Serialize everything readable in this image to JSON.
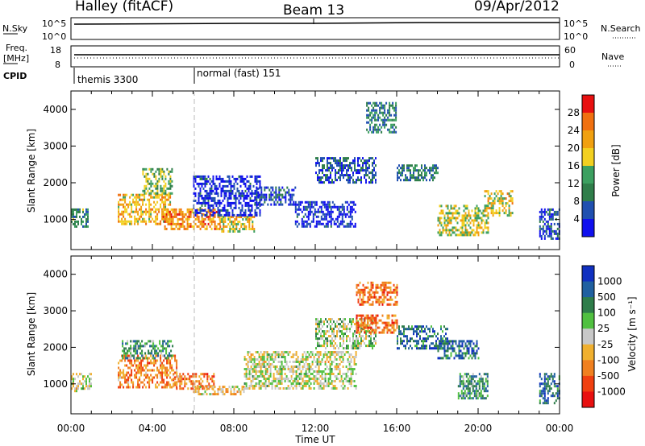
{
  "header": {
    "station": "Halley (fitACF)",
    "beam": "Beam 13",
    "date": "09/Apr/2012"
  },
  "top_panels": {
    "nsky_label": "N.Sky",
    "nsky_ticks": [
      "10^5",
      "10^0"
    ],
    "nsearch_label": "N.Search",
    "nsearch_ticks": [
      "10^5",
      "10^0"
    ],
    "freq_label": "Freq.",
    "freq_unit": "[MHz]",
    "freq_ticks": [
      "18",
      "8"
    ],
    "nave_label": "Nave",
    "nave_ticks": [
      "60",
      "0"
    ],
    "cpid_label": "CPID",
    "cpid_modes": [
      {
        "name": "themis 3300",
        "start_hour": 0
      },
      {
        "name": "normal (fast) 151",
        "start_hour": 6
      }
    ]
  },
  "chart_data": [
    {
      "type": "heatmap",
      "name": "power",
      "ylabel": "Slant Range [km]",
      "xlabel": "Time UT",
      "x_ticks": [
        "00:00",
        "04:00",
        "08:00",
        "12:00",
        "16:00",
        "20:00",
        "00:00"
      ],
      "xlim_hours": [
        0,
        24
      ],
      "y_ticks": [
        1000,
        2000,
        3000,
        4000
      ],
      "ylim": [
        180,
        4500
      ],
      "colorbar": {
        "label": "Power [dB]",
        "ticks": [
          4,
          8,
          12,
          16,
          20,
          24,
          28
        ],
        "range": [
          0,
          32
        ],
        "colors": [
          "#1010ee",
          "#2050b0",
          "#2f7e4a",
          "#3ca060",
          "#f2d020",
          "#f0a010",
          "#f07010",
          "#e81010"
        ]
      },
      "regions": [
        {
          "t": [
            0.0,
            0.8
          ],
          "r": [
            800,
            1300
          ],
          "level": 0.35
        },
        {
          "t": [
            2.3,
            4.9
          ],
          "r": [
            900,
            1700
          ],
          "level": 0.65
        },
        {
          "t": [
            3.5,
            5.0
          ],
          "r": [
            1700,
            2400
          ],
          "level": 0.45
        },
        {
          "t": [
            4.5,
            7.3
          ],
          "r": [
            750,
            1300
          ],
          "level": 0.75
        },
        {
          "t": [
            7.3,
            9.0
          ],
          "r": [
            650,
            1100
          ],
          "level": 0.6
        },
        {
          "t": [
            6.0,
            9.3
          ],
          "r": [
            1100,
            2200
          ],
          "level": 0.1
        },
        {
          "t": [
            9.0,
            11.0
          ],
          "r": [
            1400,
            1900
          ],
          "level": 0.15
        },
        {
          "t": [
            11.0,
            14.0
          ],
          "r": [
            800,
            1500
          ],
          "level": 0.1
        },
        {
          "t": [
            12.0,
            15.0
          ],
          "r": [
            2000,
            2700
          ],
          "level": 0.2
        },
        {
          "t": [
            14.5,
            16.0
          ],
          "r": [
            3400,
            4200
          ],
          "level": 0.3
        },
        {
          "t": [
            16.0,
            18.0
          ],
          "r": [
            2100,
            2500
          ],
          "level": 0.3
        },
        {
          "t": [
            18.0,
            20.5
          ],
          "r": [
            600,
            1400
          ],
          "level": 0.55
        },
        {
          "t": [
            20.3,
            21.7
          ],
          "r": [
            1100,
            1800
          ],
          "level": 0.6
        },
        {
          "t": [
            23.0,
            24.0
          ],
          "r": [
            500,
            1300
          ],
          "level": 0.15
        }
      ]
    },
    {
      "type": "heatmap",
      "name": "velocity",
      "ylabel": "Slant Range [km]",
      "xlabel": "Time UT",
      "x_ticks": [
        "00:00",
        "04:00",
        "08:00",
        "12:00",
        "16:00",
        "20:00",
        "00:00"
      ],
      "xlim_hours": [
        0,
        24
      ],
      "y_ticks": [
        1000,
        2000,
        3000,
        4000
      ],
      "ylim": [
        180,
        4500
      ],
      "colorbar": {
        "label": "Velocity [m s⁻¹]",
        "ticks": [
          "1000",
          "500",
          "100",
          "25",
          "-25",
          "-100",
          "-500",
          "-1000"
        ],
        "colors": [
          "#1030c0",
          "#2060a0",
          "#2e7d4a",
          "#50c040",
          "#c8c8c8",
          "#f0b030",
          "#f08020",
          "#f04010",
          "#e81010"
        ]
      },
      "regions": [
        {
          "t": [
            0.0,
            1.0
          ],
          "r": [
            800,
            1300
          ],
          "level": 0.5
        },
        {
          "t": [
            2.3,
            5.2
          ],
          "r": [
            900,
            1800
          ],
          "level": 0.72
        },
        {
          "t": [
            2.5,
            5.0
          ],
          "r": [
            1700,
            2200
          ],
          "level": 0.3
        },
        {
          "t": [
            5.0,
            7.0
          ],
          "r": [
            850,
            1300
          ],
          "level": 0.72
        },
        {
          "t": [
            6.0,
            8.5
          ],
          "r": [
            700,
            950
          ],
          "level": 0.6
        },
        {
          "t": [
            8.5,
            14.0
          ],
          "r": [
            900,
            1900
          ],
          "level": 0.5
        },
        {
          "t": [
            12.0,
            15.0
          ],
          "r": [
            2000,
            2800
          ],
          "level": 0.45
        },
        {
          "t": [
            14.0,
            16.0
          ],
          "r": [
            2400,
            2900
          ],
          "level": 0.75
        },
        {
          "t": [
            14.0,
            16.0
          ],
          "r": [
            3200,
            3800
          ],
          "level": 0.75
        },
        {
          "t": [
            16.0,
            18.5
          ],
          "r": [
            2000,
            2600
          ],
          "level": 0.2
        },
        {
          "t": [
            18.0,
            20.0
          ],
          "r": [
            1700,
            2200
          ],
          "level": 0.2
        },
        {
          "t": [
            19.0,
            20.5
          ],
          "r": [
            600,
            1300
          ],
          "level": 0.3
        },
        {
          "t": [
            23.0,
            24.0
          ],
          "r": [
            500,
            1300
          ],
          "level": 0.2
        }
      ]
    }
  ]
}
